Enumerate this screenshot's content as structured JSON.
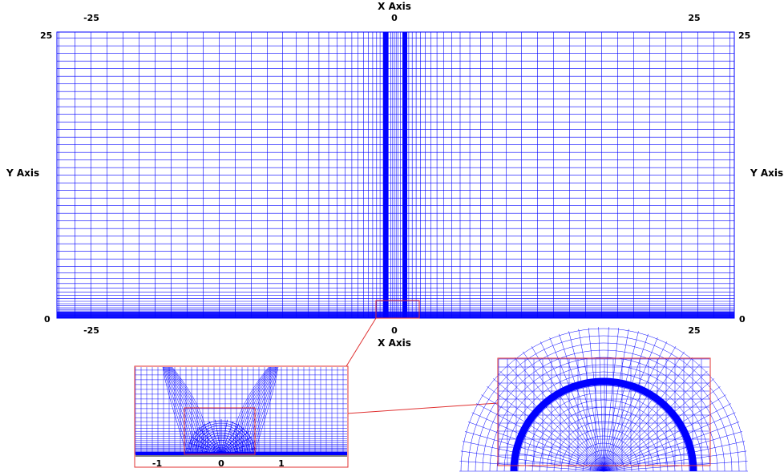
{
  "main_plot": {
    "x_axis_title_top": "X Axis",
    "x_axis_title_bottom": "X Axis",
    "y_axis_title_left": "Y Axis",
    "y_axis_title_right": "Y Axis",
    "top_ticks": [
      "-25",
      "0",
      "25"
    ],
    "bottom_ticks": [
      "-25",
      "0",
      "25"
    ],
    "left_ticks": [
      "25",
      "0"
    ],
    "right_ticks": [
      "25",
      "0"
    ],
    "x_range": [
      -25,
      25
    ],
    "y_range": [
      0,
      25
    ]
  },
  "zoom1": {
    "ticks": [
      "-1",
      "0",
      "1"
    ]
  },
  "colors": {
    "mesh": "#0000ff",
    "zoom_frame": "#e03030",
    "text": "#000000"
  }
}
